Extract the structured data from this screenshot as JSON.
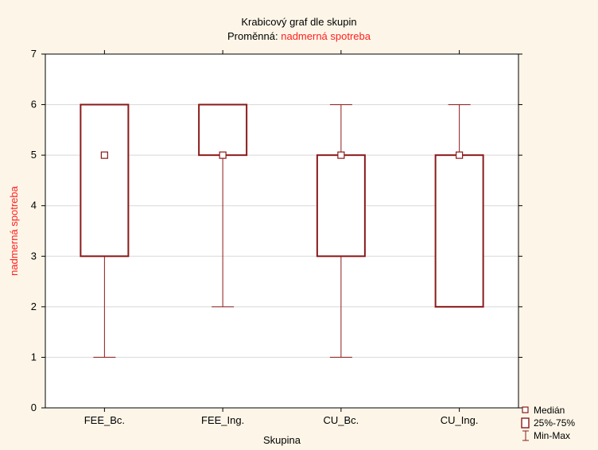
{
  "chart_data": {
    "type": "boxplot",
    "title": "Krabicový graf dle skupin",
    "subtitle_prefix": "Proměnná:",
    "subtitle_variable": "nadmerná spotreba",
    "xlabel": "Skupina",
    "ylabel": "nadmerná spotreba",
    "ylim": [
      0,
      7
    ],
    "yticks": [
      0,
      1,
      2,
      3,
      4,
      5,
      6,
      7
    ],
    "grid": true,
    "legend_position": "bottom-right",
    "categories": [
      "FEE_Bc.",
      "FEE_Ing.",
      "CU_Bc.",
      "CU_Ing."
    ],
    "boxes": [
      {
        "min": 1,
        "q1": 3,
        "median": 5,
        "q3": 6,
        "max": 6
      },
      {
        "min": 2,
        "q1": 5,
        "median": 5,
        "q3": 6,
        "max": 6
      },
      {
        "min": 1,
        "q1": 3,
        "median": 5,
        "q3": 5,
        "max": 6
      },
      {
        "min": 2,
        "q1": 2,
        "median": 5,
        "q3": 5,
        "max": 6
      }
    ],
    "legend": [
      "Medián",
      "25%-75%",
      "Min-Max"
    ],
    "colors": {
      "box": "#8b1a1a",
      "accent": "#ff2020",
      "grid": "#d8d8d8",
      "plot_bg": "#ffffff"
    }
  }
}
